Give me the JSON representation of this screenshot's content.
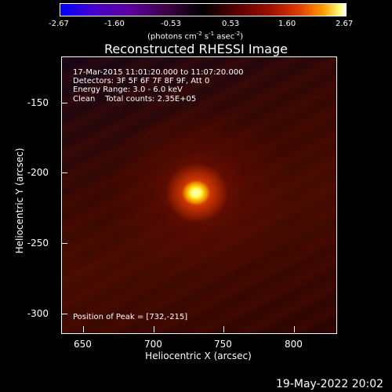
{
  "colorbar": {
    "ticks": [
      "-2.67",
      "-1.60",
      "-0.53",
      "0.53",
      "1.60",
      "2.67"
    ],
    "unit_prefix": "(photons cm",
    "unit_exp1": "-2",
    "unit_mid1": " s",
    "unit_exp2": "-1",
    "unit_mid2": " asec",
    "unit_exp3": "-2",
    "unit_suffix": ")"
  },
  "title": "Reconstructed RHESSI Image",
  "info": {
    "time": "17-Mar-2015 11:01:20.000 to 11:07:20.000",
    "detectors": "Detectors: 3F 5F 6F 7F 8F 9F, Att 0",
    "energy": "Energy Range: 3.0 - 6.0 keV",
    "clean": "Clean    Total counts: 2.35E+05",
    "peak": "Position of Peak = [732,-215]"
  },
  "axes": {
    "x_label": "Heliocentric X (arcsec)",
    "y_label": "Heliocentric Y (arcsec)",
    "x_ticks": [
      "650",
      "700",
      "750",
      "800"
    ],
    "y_ticks": [
      "-150",
      "-200",
      "-250",
      "-300"
    ]
  },
  "footer_date": "19-May-2022 20:02"
}
